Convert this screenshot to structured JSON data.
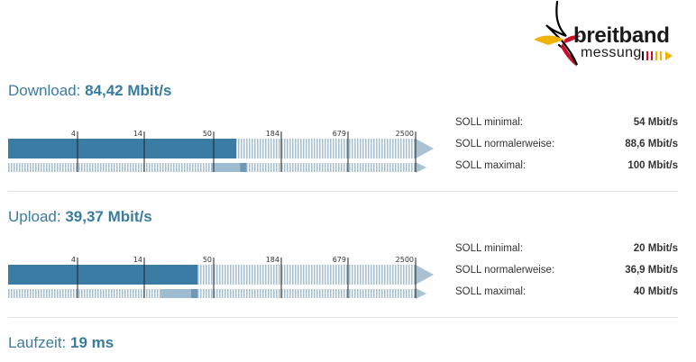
{
  "logo": {
    "main": "breitband",
    "sub": "messung",
    "colors": {
      "text": "#1a1a1a",
      "red": "#c8102e",
      "gold": "#f2b300",
      "black": "#000000"
    }
  },
  "download": {
    "label": "Download:",
    "value": "84,42 Mbit/s",
    "ticks": [
      "4",
      "14",
      "50",
      "184",
      "679",
      "2500"
    ],
    "measured_fraction": 0.56,
    "soll_fraction_range": [
      0.5,
      0.585
    ],
    "soll": [
      {
        "label": "SOLL minimal:",
        "value": "54 Mbit/s"
      },
      {
        "label": "SOLL normalerweise:",
        "value": "88,6 Mbit/s"
      },
      {
        "label": "SOLL maximal:",
        "value": "100 Mbit/s"
      }
    ]
  },
  "upload": {
    "label": "Upload:",
    "value": "39,37 Mbit/s",
    "ticks": [
      "4",
      "14",
      "50",
      "184",
      "679",
      "2500"
    ],
    "measured_fraction": 0.465,
    "soll_fraction_range": [
      0.375,
      0.465
    ],
    "soll": [
      {
        "label": "SOLL minimal:",
        "value": "20 Mbit/s"
      },
      {
        "label": "SOLL normalerweise:",
        "value": "36,9 Mbit/s"
      },
      {
        "label": "SOLL maximal:",
        "value": "40 Mbit/s"
      }
    ]
  },
  "latency": {
    "label": "Laufzeit:",
    "value": "19 ms"
  },
  "colors": {
    "accent": "#3a7c9f",
    "bar": "#3a7ca3",
    "stripe": "#a9c2d3",
    "soll_band": "#9dbcd0",
    "soll_band_dark": "#6e98b5",
    "arrow": "#a9c2d3"
  }
}
